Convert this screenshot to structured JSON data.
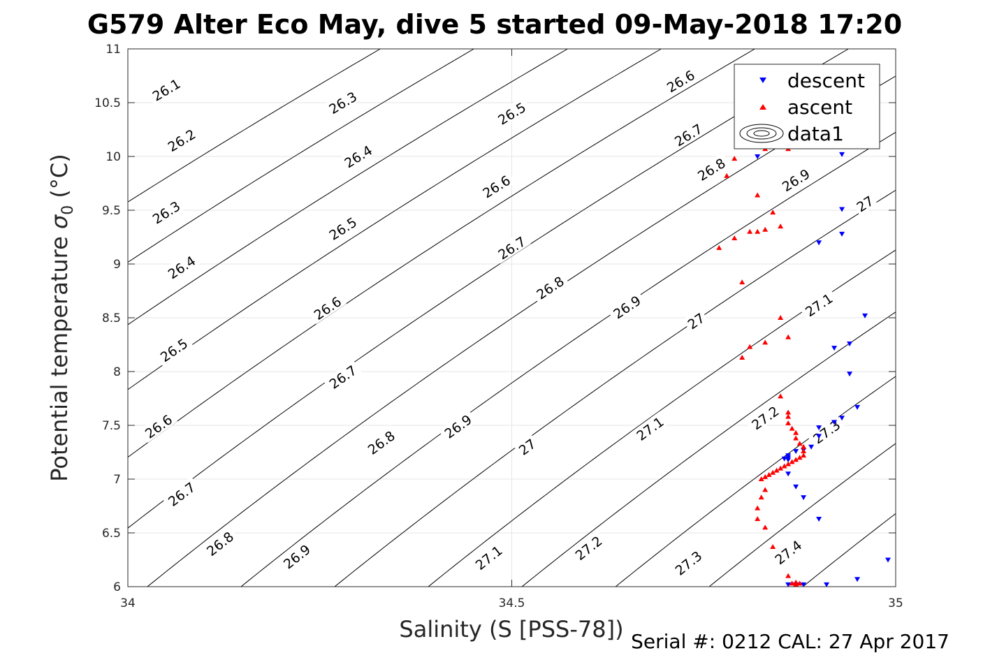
{
  "title": "G579 Alter Eco May, dive 5 started 09-May-2018 17:20",
  "footer": "Serial #: 0212  CAL: 27 Apr 2017",
  "colors": {
    "descent": "#0000ff",
    "ascent": "#ff0000",
    "contour": "#000000",
    "grid": "#e6e6e6"
  },
  "chart_data": {
    "type": "scatter",
    "xlabel": "Salinity (S [PSS-78])",
    "ylabel": "Potential temperature σ0 (°C)",
    "ylabel_text": "Potential temperature ",
    "ylabel_sigma": "σ",
    "ylabel_sub": "0",
    "ylabel_unit": " (°C)",
    "xlim": [
      34,
      35
    ],
    "ylim": [
      6,
      11
    ],
    "xticks": [
      34,
      34.5,
      35
    ],
    "xtick_labels": [
      "34",
      "34.5",
      "35"
    ],
    "yticks": [
      6,
      6.5,
      7,
      7.5,
      8,
      8.5,
      9,
      9.5,
      10,
      10.5,
      11
    ],
    "ytick_labels": [
      "6",
      "6.5",
      "7",
      "7.5",
      "8",
      "8.5",
      "9",
      "9.5",
      "10",
      "10.5",
      "11"
    ],
    "grid": true,
    "legend_position": "top-right",
    "legend": [
      "descent",
      "ascent",
      "data1"
    ],
    "contours": {
      "levels": [
        26.1,
        26.2,
        26.3,
        26.4,
        26.5,
        26.6,
        26.7,
        26.8,
        26.9,
        27.0,
        27.1,
        27.2,
        27.3,
        27.4
      ],
      "labels": [
        {
          "text": "26.1",
          "s": 34.05,
          "t": 10.62
        },
        {
          "text": "26.2",
          "s": 34.07,
          "t": 10.15
        },
        {
          "text": "26.3",
          "s": 34.05,
          "t": 9.48
        },
        {
          "text": "26.4",
          "s": 34.07,
          "t": 8.97
        },
        {
          "text": "26.5",
          "s": 34.06,
          "t": 8.2
        },
        {
          "text": "26.6",
          "s": 34.04,
          "t": 7.49
        },
        {
          "text": "26.7",
          "s": 34.07,
          "t": 6.86
        },
        {
          "text": "26.8",
          "s": 34.12,
          "t": 6.4
        },
        {
          "text": "26.3",
          "s": 34.28,
          "t": 10.5
        },
        {
          "text": "26.4",
          "s": 34.3,
          "t": 10.0
        },
        {
          "text": "26.5",
          "s": 34.28,
          "t": 9.33
        },
        {
          "text": "26.6",
          "s": 34.26,
          "t": 8.59
        },
        {
          "text": "26.7",
          "s": 34.28,
          "t": 7.95
        },
        {
          "text": "26.8",
          "s": 34.33,
          "t": 7.34
        },
        {
          "text": "26.9",
          "s": 34.22,
          "t": 6.28
        },
        {
          "text": "26.5",
          "s": 34.5,
          "t": 10.4
        },
        {
          "text": "26.6",
          "s": 34.48,
          "t": 9.72
        },
        {
          "text": "26.7",
          "s": 34.5,
          "t": 9.15
        },
        {
          "text": "26.8",
          "s": 34.55,
          "t": 8.78
        },
        {
          "text": "26.9",
          "s": 34.43,
          "t": 7.49
        },
        {
          "text": "27",
          "s": 34.52,
          "t": 7.3
        },
        {
          "text": "27.1",
          "s": 34.47,
          "t": 6.27
        },
        {
          "text": "26.6",
          "s": 34.72,
          "t": 10.7
        },
        {
          "text": "26.7",
          "s": 34.73,
          "t": 10.2
        },
        {
          "text": "26.9",
          "s": 34.65,
          "t": 8.6
        },
        {
          "text": "27",
          "s": 34.74,
          "t": 8.47
        },
        {
          "text": "27.1",
          "s": 34.68,
          "t": 7.47
        },
        {
          "text": "27.2",
          "s": 34.6,
          "t": 6.36
        },
        {
          "text": "26.8",
          "s": 34.76,
          "t": 9.88
        },
        {
          "text": "26.9",
          "s": 34.87,
          "t": 9.78
        },
        {
          "text": "27",
          "s": 34.96,
          "t": 9.56
        },
        {
          "text": "27.1",
          "s": 34.9,
          "t": 8.62
        },
        {
          "text": "27.2",
          "s": 34.83,
          "t": 7.57
        },
        {
          "text": "27.3",
          "s": 34.73,
          "t": 6.22
        },
        {
          "text": "27.3",
          "s": 34.91,
          "t": 7.44
        },
        {
          "text": "27.4",
          "s": 34.86,
          "t": 6.32
        }
      ]
    },
    "series": [
      {
        "name": "descent",
        "marker": "triangle-down",
        "points": [
          [
            34.82,
            10.0
          ],
          [
            34.86,
            10.1
          ],
          [
            34.88,
            10.1
          ],
          [
            34.93,
            10.02
          ],
          [
            34.93,
            9.51
          ],
          [
            34.93,
            9.28
          ],
          [
            34.9,
            9.2
          ],
          [
            34.96,
            8.52
          ],
          [
            34.92,
            8.22
          ],
          [
            34.94,
            8.26
          ],
          [
            34.94,
            7.98
          ],
          [
            34.95,
            7.67
          ],
          [
            34.93,
            7.57
          ],
          [
            34.92,
            7.53
          ],
          [
            34.9,
            7.48
          ],
          [
            34.9,
            7.4
          ],
          [
            34.89,
            7.3
          ],
          [
            34.88,
            7.27
          ],
          [
            34.87,
            7.26
          ],
          [
            34.86,
            7.22
          ],
          [
            34.86,
            7.2
          ],
          [
            34.855,
            7.19
          ],
          [
            34.86,
            7.18
          ],
          [
            34.86,
            7.05
          ],
          [
            34.87,
            6.93
          ],
          [
            34.88,
            6.83
          ],
          [
            34.9,
            6.63
          ],
          [
            34.86,
            6.02
          ],
          [
            34.87,
            6.02
          ],
          [
            34.88,
            6.02
          ],
          [
            34.91,
            6.02
          ],
          [
            34.95,
            6.07
          ],
          [
            34.99,
            6.25
          ]
        ]
      },
      {
        "name": "ascent",
        "marker": "triangle-up",
        "points": [
          [
            34.78,
            9.82
          ],
          [
            34.79,
            9.98
          ],
          [
            34.83,
            10.07
          ],
          [
            34.86,
            10.07
          ],
          [
            34.82,
            9.64
          ],
          [
            34.84,
            9.48
          ],
          [
            34.82,
            9.3
          ],
          [
            34.83,
            9.32
          ],
          [
            34.85,
            9.35
          ],
          [
            34.81,
            9.3
          ],
          [
            34.79,
            9.24
          ],
          [
            34.77,
            9.15
          ],
          [
            34.8,
            8.83
          ],
          [
            34.85,
            8.5
          ],
          [
            34.86,
            8.32
          ],
          [
            34.83,
            8.27
          ],
          [
            34.81,
            8.23
          ],
          [
            34.8,
            8.13
          ],
          [
            34.85,
            7.77
          ],
          [
            34.86,
            7.62
          ],
          [
            34.86,
            7.58
          ],
          [
            34.86,
            7.52
          ],
          [
            34.865,
            7.47
          ],
          [
            34.87,
            7.43
          ],
          [
            34.87,
            7.38
          ],
          [
            34.875,
            7.33
          ],
          [
            34.88,
            7.3
          ],
          [
            34.88,
            7.26
          ],
          [
            34.88,
            7.22
          ],
          [
            34.875,
            7.2
          ],
          [
            34.87,
            7.18
          ],
          [
            34.865,
            7.16
          ],
          [
            34.86,
            7.14
          ],
          [
            34.855,
            7.12
          ],
          [
            34.85,
            7.1
          ],
          [
            34.845,
            7.08
          ],
          [
            34.84,
            7.06
          ],
          [
            34.835,
            7.04
          ],
          [
            34.83,
            7.02
          ],
          [
            34.825,
            7.0
          ],
          [
            34.83,
            6.9
          ],
          [
            34.825,
            6.83
          ],
          [
            34.82,
            6.73
          ],
          [
            34.82,
            6.63
          ],
          [
            34.83,
            6.55
          ],
          [
            34.84,
            6.37
          ],
          [
            34.86,
            6.1
          ],
          [
            34.87,
            6.04
          ],
          [
            34.87,
            6.02
          ],
          [
            34.865,
            6.03
          ],
          [
            34.875,
            6.03
          ]
        ]
      }
    ]
  }
}
